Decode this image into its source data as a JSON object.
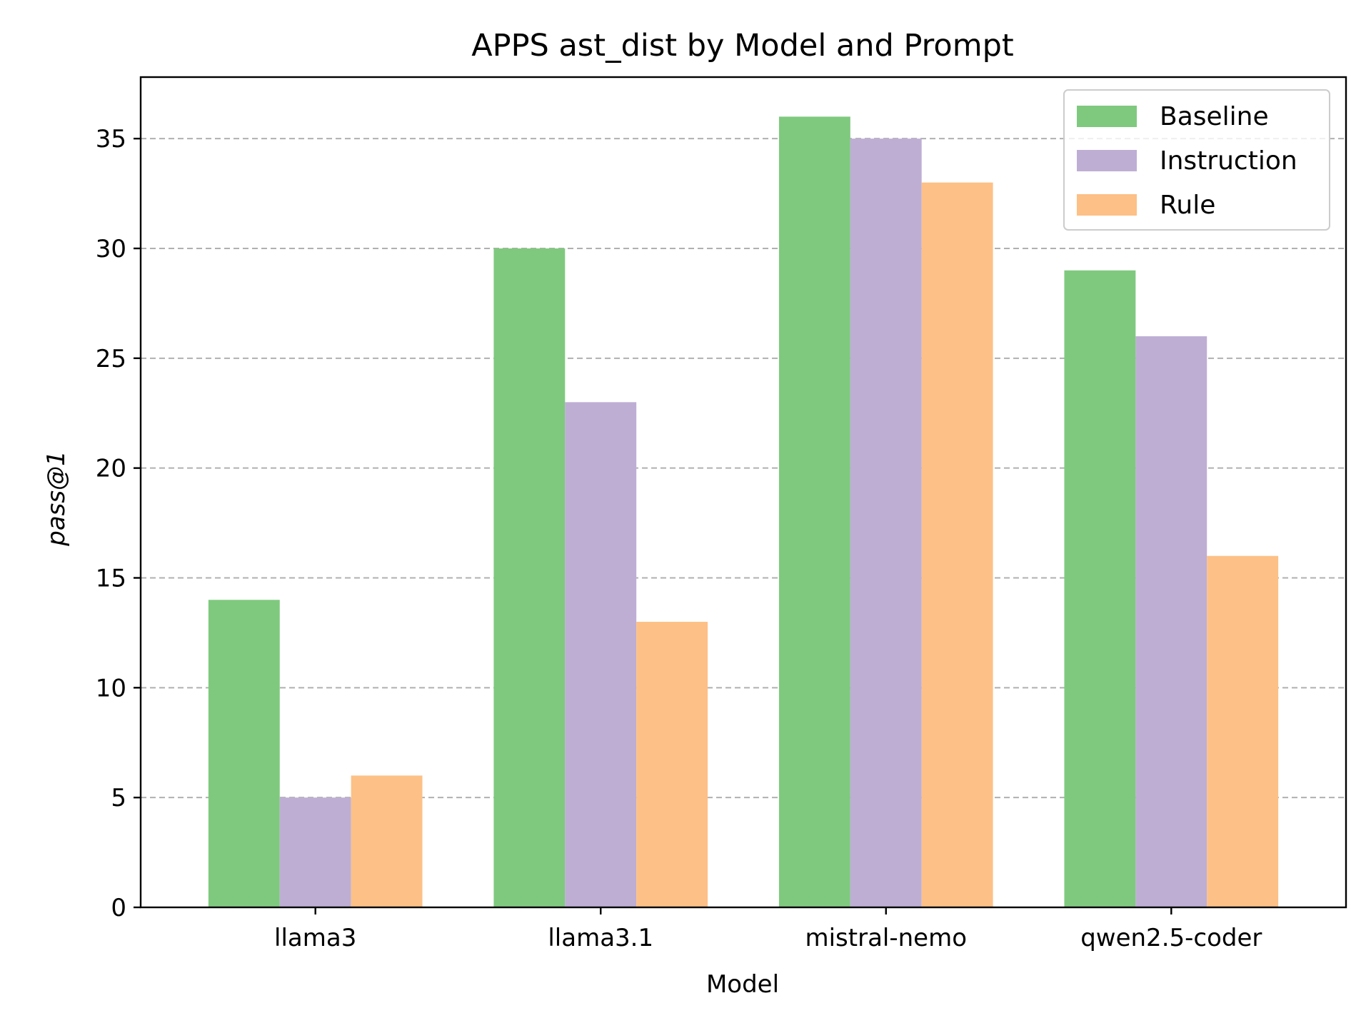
{
  "chart_data": {
    "type": "bar",
    "title": "APPS ast_dist by Model and Prompt",
    "xlabel": "Model",
    "ylabel": "pass@1",
    "categories": [
      "llama3",
      "llama3.1",
      "mistral-nemo",
      "qwen2.5-coder"
    ],
    "series": [
      {
        "name": "Baseline",
        "color": "#7fc97f",
        "values": [
          14,
          30,
          36,
          29
        ]
      },
      {
        "name": "Instruction",
        "color": "#beaed4",
        "values": [
          5,
          23,
          35,
          26
        ]
      },
      {
        "name": "Rule",
        "color": "#fdc086",
        "values": [
          6,
          13,
          33,
          16
        ]
      }
    ],
    "ylim": [
      0,
      37.8
    ],
    "yticks": [
      0,
      5,
      10,
      15,
      20,
      25,
      30,
      35
    ],
    "grid": "y-dashed",
    "legend": "top-right"
  }
}
